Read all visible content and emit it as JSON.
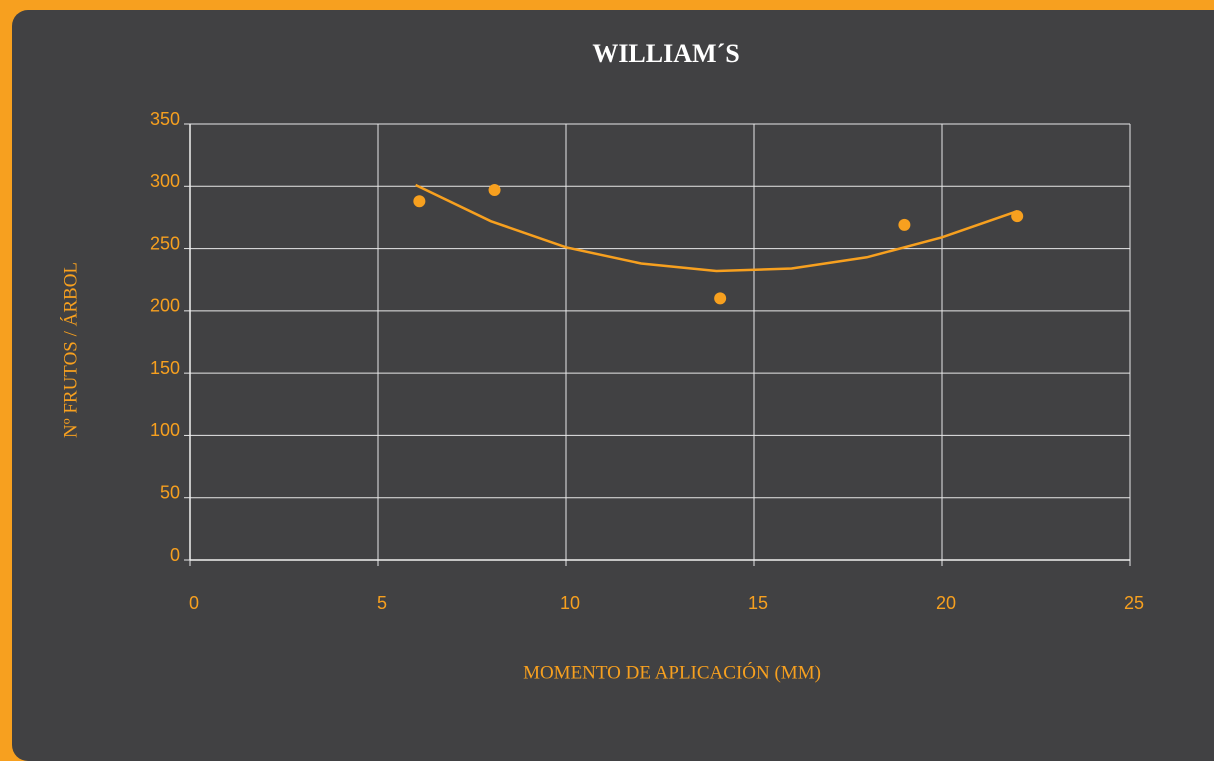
{
  "chart_data": {
    "type": "scatter",
    "title": "WILLIAM´S",
    "x_label": "MOMENTO DE APLICACIÓN (MM)",
    "y_label": "Nº FRUTOS / ÁRBOL",
    "series": [
      {
        "name": "Williams",
        "color": "#f7a01f",
        "x": [
          6.1,
          8.1,
          14.1,
          19,
          22
        ],
        "values": [
          288,
          297,
          210,
          269,
          276
        ]
      }
    ],
    "trendline": {
      "color": "#f7a01f",
      "x": [
        6,
        8,
        10,
        12,
        14,
        16,
        18,
        20,
        22
      ],
      "values": [
        301,
        272,
        251,
        238,
        232,
        234,
        243,
        259,
        280
      ]
    },
    "xlim": [
      0,
      25
    ],
    "xticks": [
      0,
      5,
      10,
      15,
      20,
      25
    ],
    "ylim": [
      0,
      350
    ],
    "yticks": [
      0,
      50,
      100,
      150,
      200,
      250,
      300,
      350
    ],
    "grid": true
  }
}
